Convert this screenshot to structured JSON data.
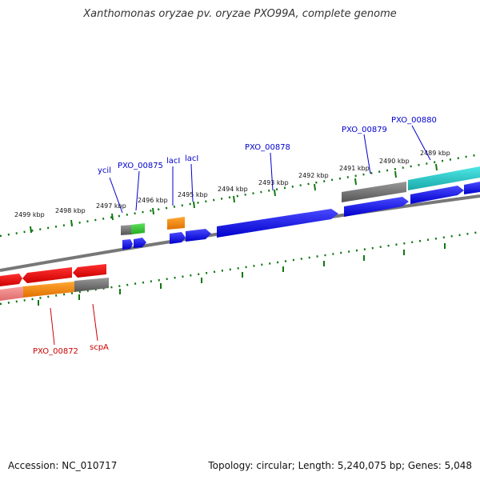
{
  "title": "Xanthomonas oryzae pv. oryzae PXO99A, complete genome",
  "footer": {
    "accession": "Accession: NC_010717",
    "summary": "Topology: circular; Length: 5,240,075 bp; Genes: 5,048"
  },
  "ticks": [
    "2499 kbp",
    "2498 kbp",
    "2497 kbp",
    "2496 kbp",
    "2495 kbp",
    "2494 kbp",
    "2493 kbp",
    "2492 kbp",
    "2491 kbp",
    "2490 kbp",
    "2489 kbp"
  ],
  "gene_labels": {
    "ycil": "ycil",
    "pxo875": "PXO_00875",
    "lacl_1": "lacI",
    "lacl_2": "lacI",
    "pxo878": "PXO_00878",
    "pxo879": "PXO_00879",
    "pxo880": "PXO_00880",
    "pxo872": "PXO_00872",
    "scpa": "scpA"
  },
  "colors": {
    "forward_gene": "#0000ee",
    "reverse_gene": "#ee0000",
    "rna": "#888888",
    "orange": "#ff8c00",
    "green": "#33cc33",
    "cyan": "#22cccc",
    "pink": "#f08080",
    "tick_green": "#117711",
    "label_blue": "#0000cc",
    "label_red": "#cc0000"
  }
}
